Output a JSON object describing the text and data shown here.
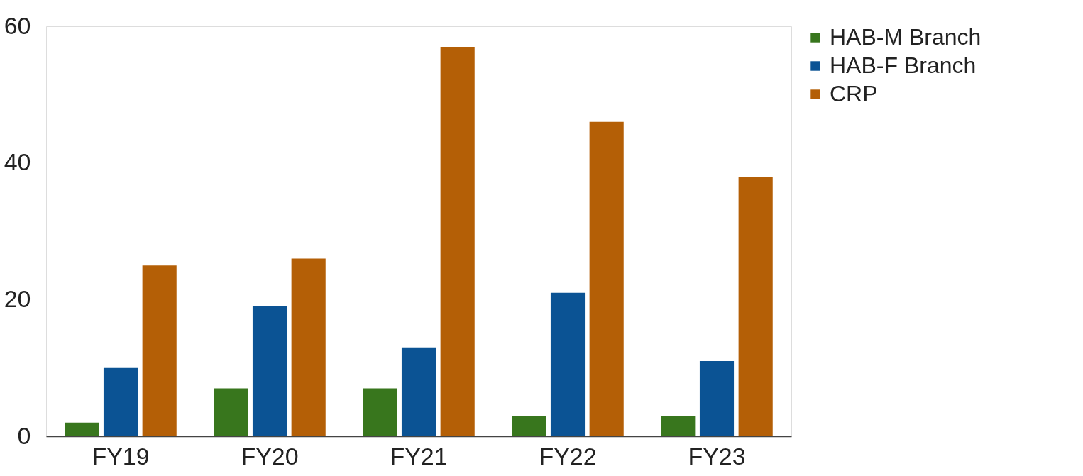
{
  "chart_data": {
    "type": "bar",
    "categories": [
      "FY19",
      "FY20",
      "FY21",
      "FY22",
      "FY23"
    ],
    "series": [
      {
        "name": "HAB-M Branch",
        "color": "#38761d",
        "values": [
          2,
          7,
          7,
          3,
          3
        ]
      },
      {
        "name": "HAB-F Branch",
        "color": "#0b5394",
        "values": [
          10,
          19,
          13,
          21,
          11
        ]
      },
      {
        "name": "CRP",
        "color": "#b45f06",
        "values": [
          25,
          26,
          57,
          46,
          38
        ]
      }
    ],
    "ylim": [
      0,
      60
    ],
    "yticks": [
      0,
      20,
      40,
      60
    ],
    "grid": false,
    "legend": "right"
  }
}
